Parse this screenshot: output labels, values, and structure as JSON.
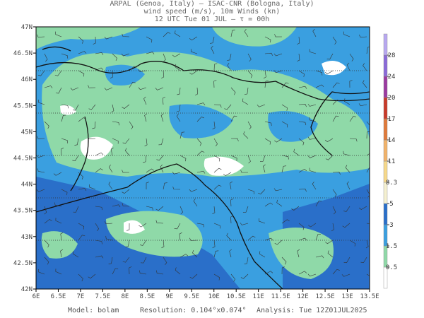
{
  "header": {
    "line1": "ARPAL (Genoa, Italy)  —  ISAC-CNR (Bologna, Italy)",
    "line2": "wind speed (m/s), 10m Winds (kn)",
    "line3": "12 UTC Tue 01 JUL  —  τ = 00h"
  },
  "map": {
    "lon_ticks": [
      "6E",
      "6.5E",
      "7E",
      "7.5E",
      "8E",
      "8.5E",
      "9E",
      "9.5E",
      "10E",
      "10.5E",
      "11E",
      "11.5E",
      "12E",
      "12.5E",
      "13E",
      "13.5E"
    ],
    "lat_ticks": [
      "47N",
      "46.5N",
      "46N",
      "45.5N",
      "45N",
      "44.5N",
      "44N",
      "43.5N",
      "43N",
      "42.5N",
      "42N"
    ],
    "lon_range": [
      6,
      13.5
    ],
    "lat_range": [
      42,
      47
    ]
  },
  "colorbar": {
    "labels": [
      "0.5",
      "1.5",
      "3",
      "5",
      "8.3",
      "11",
      "14",
      "17",
      "20",
      "24",
      "28"
    ],
    "colors": [
      "#ffffff",
      "#8fd9a8",
      "#3a9fe0",
      "#2a6fc9",
      "#f5f0d0",
      "#f7d98a",
      "#f2b36a",
      "#e07a3a",
      "#c83a2a",
      "#9b3aa0",
      "#8a6ad8",
      "#b8a8f0"
    ]
  },
  "footer": {
    "model": "Model: bolam",
    "resolution": "Resolution: 0.104°x0.074°",
    "analysis": "Analysis: Tue 12Z01JUL2025"
  }
}
